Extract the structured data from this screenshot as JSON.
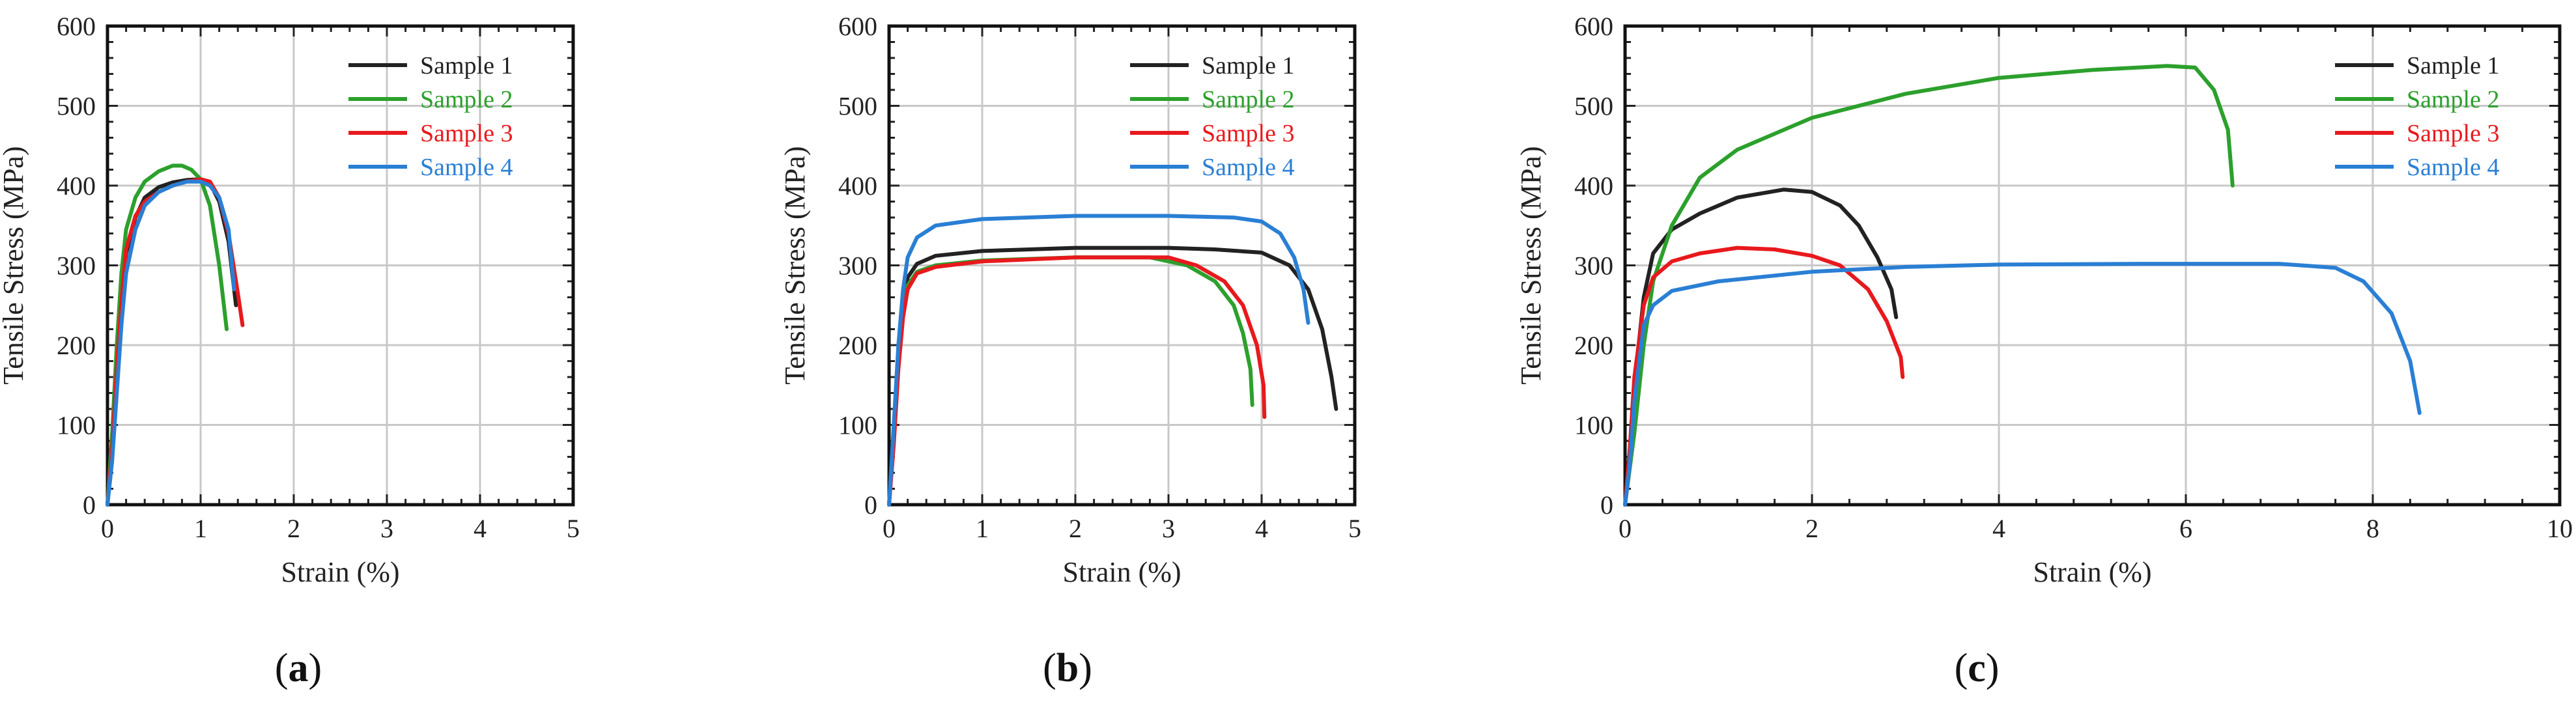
{
  "chart_data": [
    {
      "type": "line",
      "panel": "a",
      "panel_label": "(a)",
      "xlabel": "Strain (%)",
      "ylabel": "Tensile Stress (MPa)",
      "xlim": [
        0,
        5
      ],
      "ylim": [
        0,
        600
      ],
      "xticks": [
        "0",
        "1",
        "2",
        "3",
        "4",
        "5"
      ],
      "yticks": [
        "0",
        "100",
        "200",
        "300",
        "400",
        "500",
        "600"
      ],
      "grid": true,
      "legend_position": "top-right",
      "series": [
        {
          "name": "Sample 1",
          "color": "#222222",
          "points": [
            [
              0,
              0
            ],
            [
              0.05,
              80
            ],
            [
              0.1,
              180
            ],
            [
              0.15,
              260
            ],
            [
              0.2,
              315
            ],
            [
              0.3,
              360
            ],
            [
              0.4,
              385
            ],
            [
              0.55,
              398
            ],
            [
              0.7,
              404
            ],
            [
              0.85,
              407
            ],
            [
              1.0,
              408
            ],
            [
              1.1,
              403
            ],
            [
              1.2,
              380
            ],
            [
              1.3,
              330
            ],
            [
              1.38,
              250
            ]
          ]
        },
        {
          "name": "Sample 2",
          "color": "#2ca02c",
          "points": [
            [
              0,
              0
            ],
            [
              0.05,
              90
            ],
            [
              0.1,
              200
            ],
            [
              0.15,
              290
            ],
            [
              0.2,
              345
            ],
            [
              0.3,
              385
            ],
            [
              0.4,
              405
            ],
            [
              0.55,
              418
            ],
            [
              0.7,
              425
            ],
            [
              0.8,
              425
            ],
            [
              0.9,
              420
            ],
            [
              1.0,
              408
            ],
            [
              1.1,
              375
            ],
            [
              1.2,
              300
            ],
            [
              1.28,
              220
            ]
          ]
        },
        {
          "name": "Sample 3",
          "color": "#e8191d",
          "points": [
            [
              0,
              0
            ],
            [
              0.05,
              70
            ],
            [
              0.1,
              170
            ],
            [
              0.15,
              255
            ],
            [
              0.2,
              320
            ],
            [
              0.3,
              362
            ],
            [
              0.4,
              380
            ],
            [
              0.55,
              392
            ],
            [
              0.7,
              400
            ],
            [
              0.85,
              405
            ],
            [
              1.0,
              408
            ],
            [
              1.1,
              405
            ],
            [
              1.2,
              385
            ],
            [
              1.3,
              340
            ],
            [
              1.4,
              265
            ],
            [
              1.45,
              225
            ]
          ]
        },
        {
          "name": "Sample 4",
          "color": "#2a7fd4",
          "points": [
            [
              0,
              0
            ],
            [
              0.05,
              55
            ],
            [
              0.1,
              140
            ],
            [
              0.15,
              225
            ],
            [
              0.2,
              290
            ],
            [
              0.3,
              345
            ],
            [
              0.4,
              375
            ],
            [
              0.55,
              392
            ],
            [
              0.7,
              400
            ],
            [
              0.85,
              405
            ],
            [
              1.0,
              405
            ],
            [
              1.1,
              400
            ],
            [
              1.2,
              385
            ],
            [
              1.3,
              345
            ],
            [
              1.36,
              270
            ]
          ]
        }
      ]
    },
    {
      "type": "line",
      "panel": "b",
      "panel_label": "(b)",
      "xlabel": "Strain (%)",
      "ylabel": "Tensile Stress (MPa)",
      "xlim": [
        0,
        5
      ],
      "ylim": [
        0,
        600
      ],
      "xticks": [
        "0",
        "1",
        "2",
        "3",
        "4",
        "5"
      ],
      "yticks": [
        "0",
        "100",
        "200",
        "300",
        "400",
        "500",
        "600"
      ],
      "grid": true,
      "legend_position": "top-right",
      "series": [
        {
          "name": "Sample 1",
          "color": "#222222",
          "points": [
            [
              0,
              0
            ],
            [
              0.05,
              90
            ],
            [
              0.1,
              190
            ],
            [
              0.15,
              250
            ],
            [
              0.2,
              285
            ],
            [
              0.3,
              302
            ],
            [
              0.5,
              312
            ],
            [
              1.0,
              318
            ],
            [
              2.0,
              322
            ],
            [
              3.0,
              322
            ],
            [
              3.5,
              320
            ],
            [
              4.0,
              316
            ],
            [
              4.3,
              300
            ],
            [
              4.5,
              270
            ],
            [
              4.65,
              220
            ],
            [
              4.75,
              160
            ],
            [
              4.8,
              120
            ]
          ]
        },
        {
          "name": "Sample 2",
          "color": "#2ca02c",
          "points": [
            [
              0,
              0
            ],
            [
              0.05,
              80
            ],
            [
              0.1,
              175
            ],
            [
              0.15,
              240
            ],
            [
              0.2,
              275
            ],
            [
              0.3,
              292
            ],
            [
              0.5,
              300
            ],
            [
              1.0,
              306
            ],
            [
              2.0,
              310
            ],
            [
              2.8,
              310
            ],
            [
              3.2,
              300
            ],
            [
              3.5,
              280
            ],
            [
              3.7,
              250
            ],
            [
              3.8,
              215
            ],
            [
              3.88,
              170
            ],
            [
              3.9,
              125
            ]
          ]
        },
        {
          "name": "Sample 3",
          "color": "#e8191d",
          "points": [
            [
              0,
              0
            ],
            [
              0.05,
              75
            ],
            [
              0.1,
              170
            ],
            [
              0.15,
              235
            ],
            [
              0.2,
              270
            ],
            [
              0.3,
              290
            ],
            [
              0.5,
              298
            ],
            [
              1.0,
              305
            ],
            [
              2.0,
              310
            ],
            [
              3.0,
              310
            ],
            [
              3.3,
              300
            ],
            [
              3.6,
              280
            ],
            [
              3.8,
              250
            ],
            [
              3.95,
              200
            ],
            [
              4.02,
              150
            ],
            [
              4.03,
              110
            ]
          ]
        },
        {
          "name": "Sample 4",
          "color": "#2a7fd4",
          "points": [
            [
              0,
              0
            ],
            [
              0.05,
              100
            ],
            [
              0.1,
              200
            ],
            [
              0.15,
              270
            ],
            [
              0.2,
              310
            ],
            [
              0.3,
              335
            ],
            [
              0.5,
              350
            ],
            [
              1.0,
              358
            ],
            [
              2.0,
              362
            ],
            [
              3.0,
              362
            ],
            [
              3.7,
              360
            ],
            [
              4.0,
              355
            ],
            [
              4.2,
              340
            ],
            [
              4.35,
              310
            ],
            [
              4.45,
              270
            ],
            [
              4.5,
              228
            ]
          ]
        }
      ]
    },
    {
      "type": "line",
      "panel": "c",
      "panel_label": "(c)",
      "xlabel": "Strain (%)",
      "ylabel": "Tensile Stress (MPa)",
      "xlim": [
        0,
        10
      ],
      "ylim": [
        0,
        600
      ],
      "xticks": [
        "0",
        "2",
        "4",
        "6",
        "8",
        "10"
      ],
      "yticks": [
        "0",
        "100",
        "200",
        "300",
        "400",
        "500",
        "600"
      ],
      "grid": true,
      "legend_position": "top-right",
      "series": [
        {
          "name": "Sample 1",
          "color": "#222222",
          "points": [
            [
              0,
              0
            ],
            [
              0.05,
              60
            ],
            [
              0.1,
              150
            ],
            [
              0.2,
              260
            ],
            [
              0.3,
              315
            ],
            [
              0.5,
              345
            ],
            [
              0.8,
              365
            ],
            [
              1.2,
              385
            ],
            [
              1.7,
              395
            ],
            [
              2.0,
              392
            ],
            [
              2.3,
              375
            ],
            [
              2.5,
              350
            ],
            [
              2.7,
              310
            ],
            [
              2.85,
              270
            ],
            [
              2.9,
              235
            ]
          ]
        },
        {
          "name": "Sample 2",
          "color": "#2ca02c",
          "points": [
            [
              0,
              0
            ],
            [
              0.1,
              90
            ],
            [
              0.2,
              200
            ],
            [
              0.3,
              280
            ],
            [
              0.5,
              350
            ],
            [
              0.8,
              410
            ],
            [
              1.2,
              445
            ],
            [
              2.0,
              485
            ],
            [
              3.0,
              515
            ],
            [
              4.0,
              535
            ],
            [
              5.0,
              545
            ],
            [
              5.8,
              550
            ],
            [
              6.1,
              548
            ],
            [
              6.3,
              520
            ],
            [
              6.45,
              470
            ],
            [
              6.5,
              400
            ]
          ]
        },
        {
          "name": "Sample 3",
          "color": "#e8191d",
          "points": [
            [
              0,
              0
            ],
            [
              0.05,
              70
            ],
            [
              0.1,
              160
            ],
            [
              0.2,
              250
            ],
            [
              0.3,
              285
            ],
            [
              0.5,
              305
            ],
            [
              0.8,
              315
            ],
            [
              1.2,
              322
            ],
            [
              1.6,
              320
            ],
            [
              2.0,
              312
            ],
            [
              2.3,
              300
            ],
            [
              2.6,
              270
            ],
            [
              2.8,
              230
            ],
            [
              2.95,
              185
            ],
            [
              2.97,
              160
            ]
          ]
        },
        {
          "name": "Sample 4",
          "color": "#2a7fd4",
          "points": [
            [
              0,
              0
            ],
            [
              0.05,
              50
            ],
            [
              0.1,
              130
            ],
            [
              0.2,
              225
            ],
            [
              0.3,
              250
            ],
            [
              0.5,
              268
            ],
            [
              1.0,
              280
            ],
            [
              2.0,
              292
            ],
            [
              3.0,
              298
            ],
            [
              4.0,
              301
            ],
            [
              5.5,
              302
            ],
            [
              7.0,
              302
            ],
            [
              7.6,
              297
            ],
            [
              7.9,
              280
            ],
            [
              8.2,
              240
            ],
            [
              8.4,
              180
            ],
            [
              8.5,
              115
            ]
          ]
        }
      ]
    }
  ]
}
